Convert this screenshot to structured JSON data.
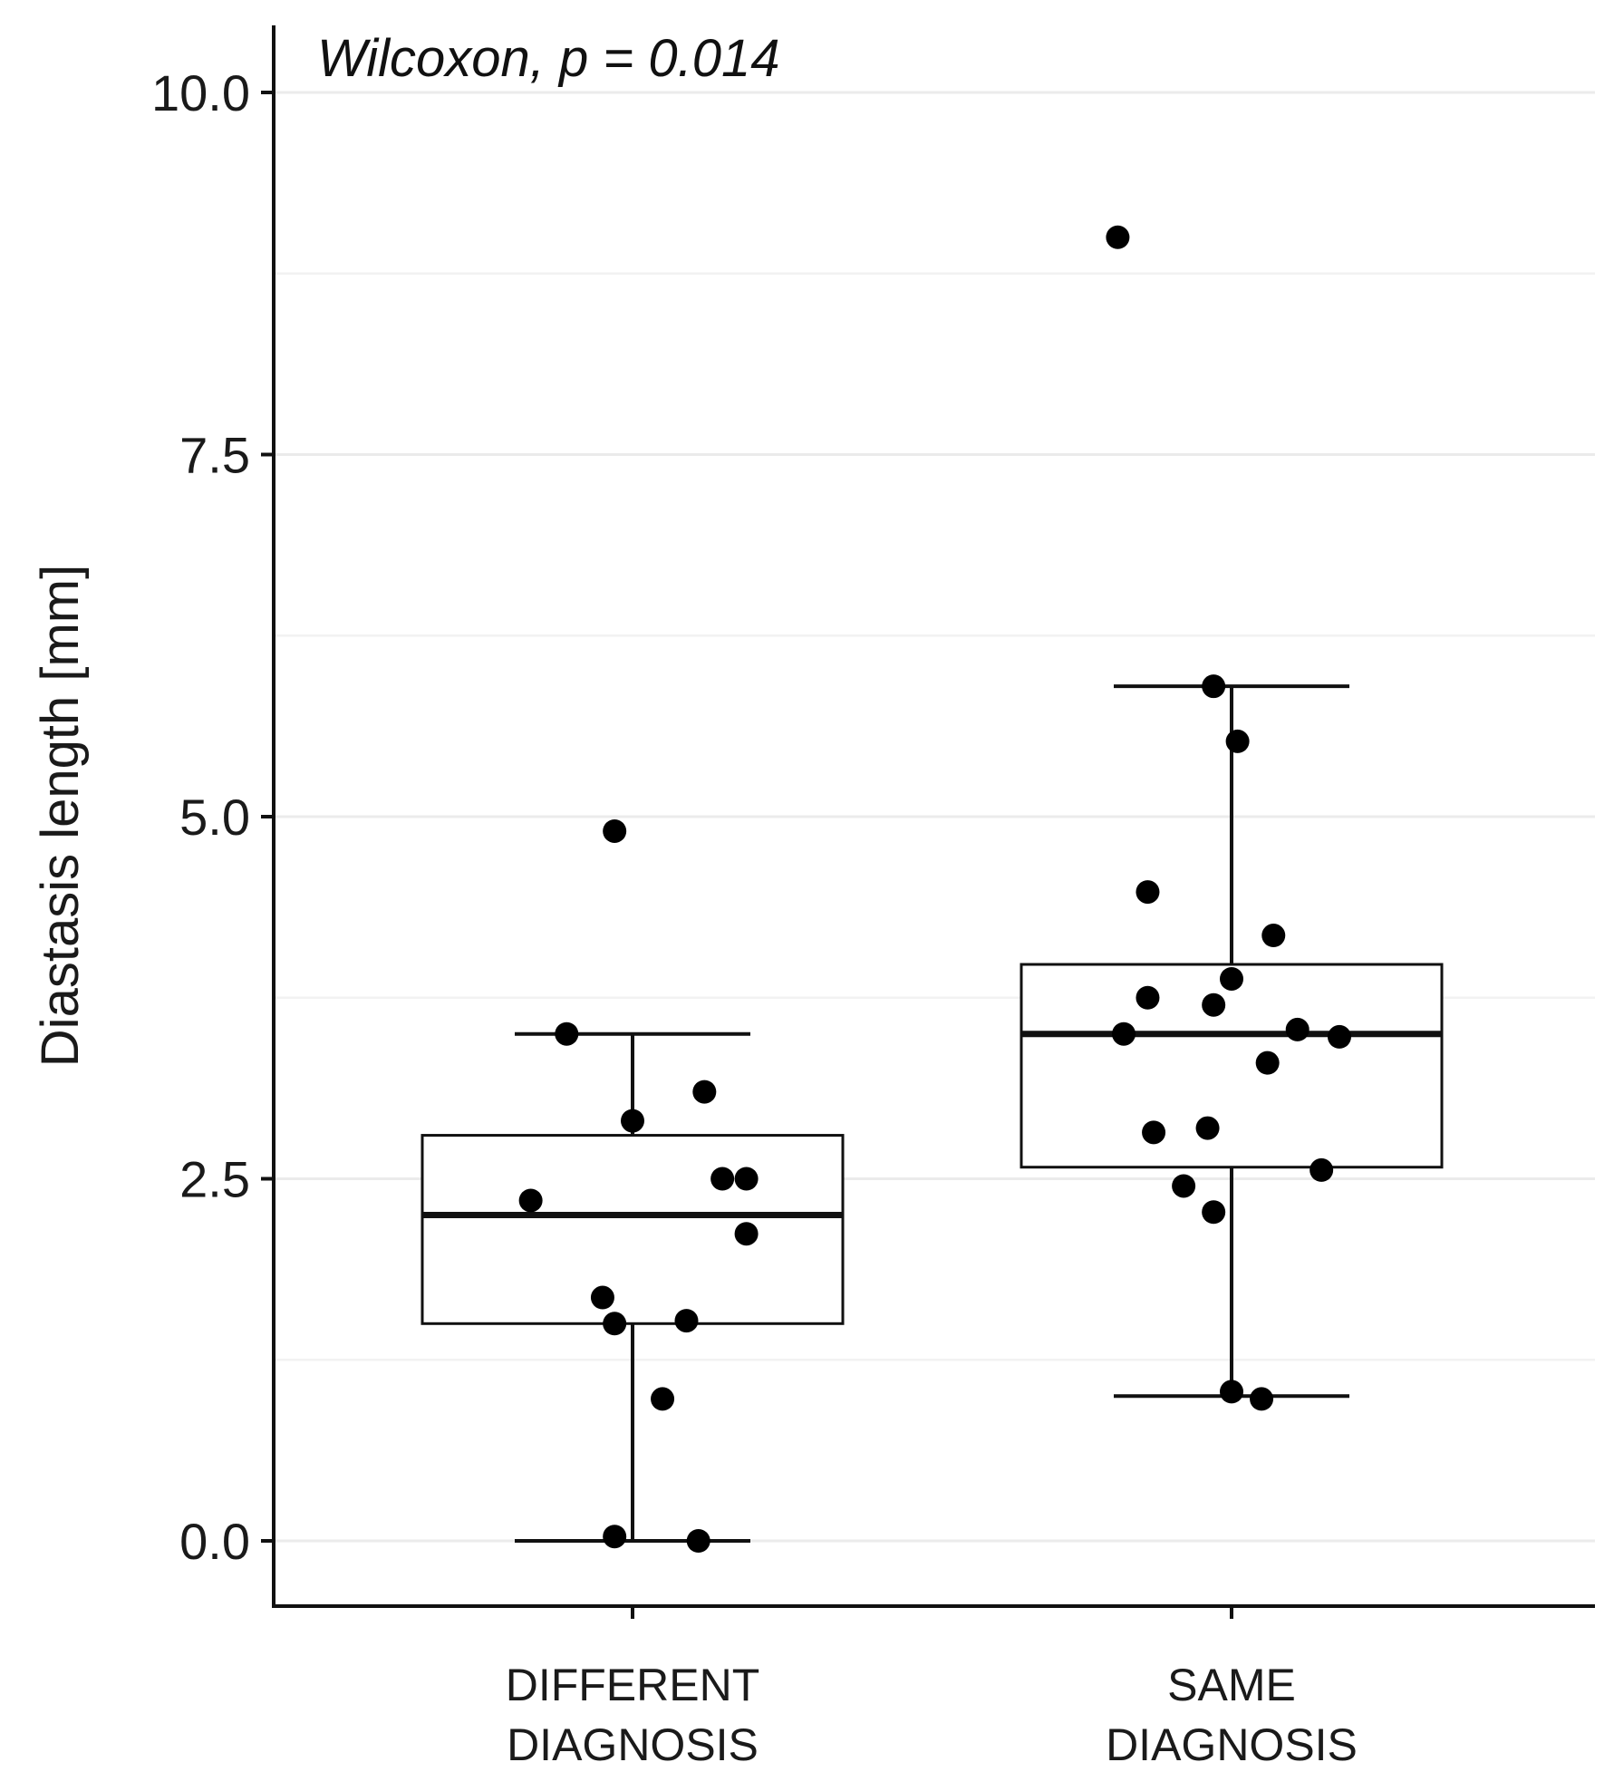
{
  "chart_data": {
    "type": "box",
    "annotation": "Wilcoxon, p = 0.014",
    "ylabel": "Diastasis length [mm]",
    "xlabel": "",
    "ylim": [
      -0.25,
      10.25
    ],
    "yticks": [
      0.0,
      2.5,
      5.0,
      7.5,
      10.0
    ],
    "ytick_labels": [
      "0.0",
      "2.5",
      "5.0",
      "7.5",
      "10.0"
    ],
    "minor_gridlines": [
      1.25,
      3.75,
      6.25,
      8.75
    ],
    "grid": true,
    "categories": [
      {
        "line1": "DIFFERENT",
        "line2": "DIAGNOSIS"
      },
      {
        "line1": "SAME",
        "line2": "DIAGNOSIS"
      }
    ],
    "boxes": [
      {
        "whisker_low": 0.0,
        "q1": 1.5,
        "median": 2.25,
        "q3": 2.8,
        "whisker_high": 3.5
      },
      {
        "whisker_low": 1.0,
        "q1": 2.58,
        "median": 3.5,
        "q3": 3.98,
        "whisker_high": 5.9
      }
    ],
    "points": [
      [
        {
          "x": 0.97,
          "y": 4.9
        },
        {
          "x": 0.89,
          "y": 3.5
        },
        {
          "x": 1.12,
          "y": 3.1
        },
        {
          "x": 1.0,
          "y": 2.9
        },
        {
          "x": 1.15,
          "y": 2.5
        },
        {
          "x": 1.19,
          "y": 2.5
        },
        {
          "x": 0.83,
          "y": 2.35
        },
        {
          "x": 1.19,
          "y": 2.12
        },
        {
          "x": 0.95,
          "y": 1.68
        },
        {
          "x": 0.97,
          "y": 1.5
        },
        {
          "x": 1.09,
          "y": 1.52
        },
        {
          "x": 1.05,
          "y": 0.98
        },
        {
          "x": 0.97,
          "y": 0.03
        },
        {
          "x": 1.11,
          "y": 0.0
        }
      ],
      [
        {
          "x": 1.81,
          "y": 9.0
        },
        {
          "x": 1.97,
          "y": 5.9
        },
        {
          "x": 2.01,
          "y": 5.52
        },
        {
          "x": 1.86,
          "y": 4.48
        },
        {
          "x": 2.07,
          "y": 4.18
        },
        {
          "x": 2.0,
          "y": 3.88
        },
        {
          "x": 1.86,
          "y": 3.75
        },
        {
          "x": 1.97,
          "y": 3.7
        },
        {
          "x": 1.82,
          "y": 3.5
        },
        {
          "x": 2.11,
          "y": 3.53
        },
        {
          "x": 2.18,
          "y": 3.48
        },
        {
          "x": 2.06,
          "y": 3.3
        },
        {
          "x": 1.96,
          "y": 2.85
        },
        {
          "x": 1.87,
          "y": 2.82
        },
        {
          "x": 2.15,
          "y": 2.56
        },
        {
          "x": 1.92,
          "y": 2.45
        },
        {
          "x": 1.97,
          "y": 2.27
        },
        {
          "x": 2.0,
          "y": 1.03
        },
        {
          "x": 2.05,
          "y": 0.98
        }
      ]
    ]
  }
}
